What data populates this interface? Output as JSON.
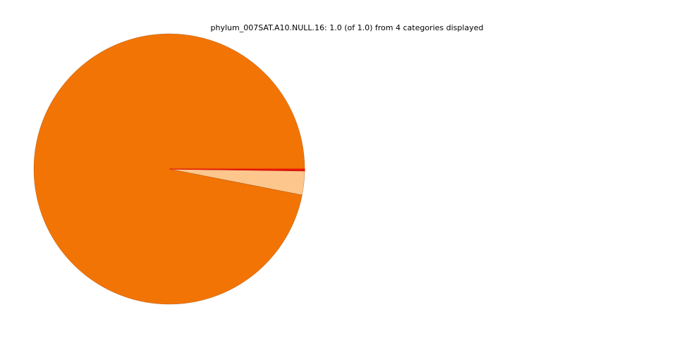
{
  "chart_data": {
    "type": "pie",
    "title": "phylum_007SAT.A10.NULL.16: 1.0 (of 1.0) from 4 categories displayed",
    "slices": [
      {
        "value": 0.971,
        "color": "#f27405"
      },
      {
        "value": 0.0285,
        "color": "#fdc68c"
      },
      {
        "value": 0.0003,
        "color": "#8c2d04"
      },
      {
        "value": 0.002,
        "color": "#e8150d"
      }
    ],
    "start_angle_deg": 0,
    "direction": "counterclockwise",
    "legend": "none"
  }
}
